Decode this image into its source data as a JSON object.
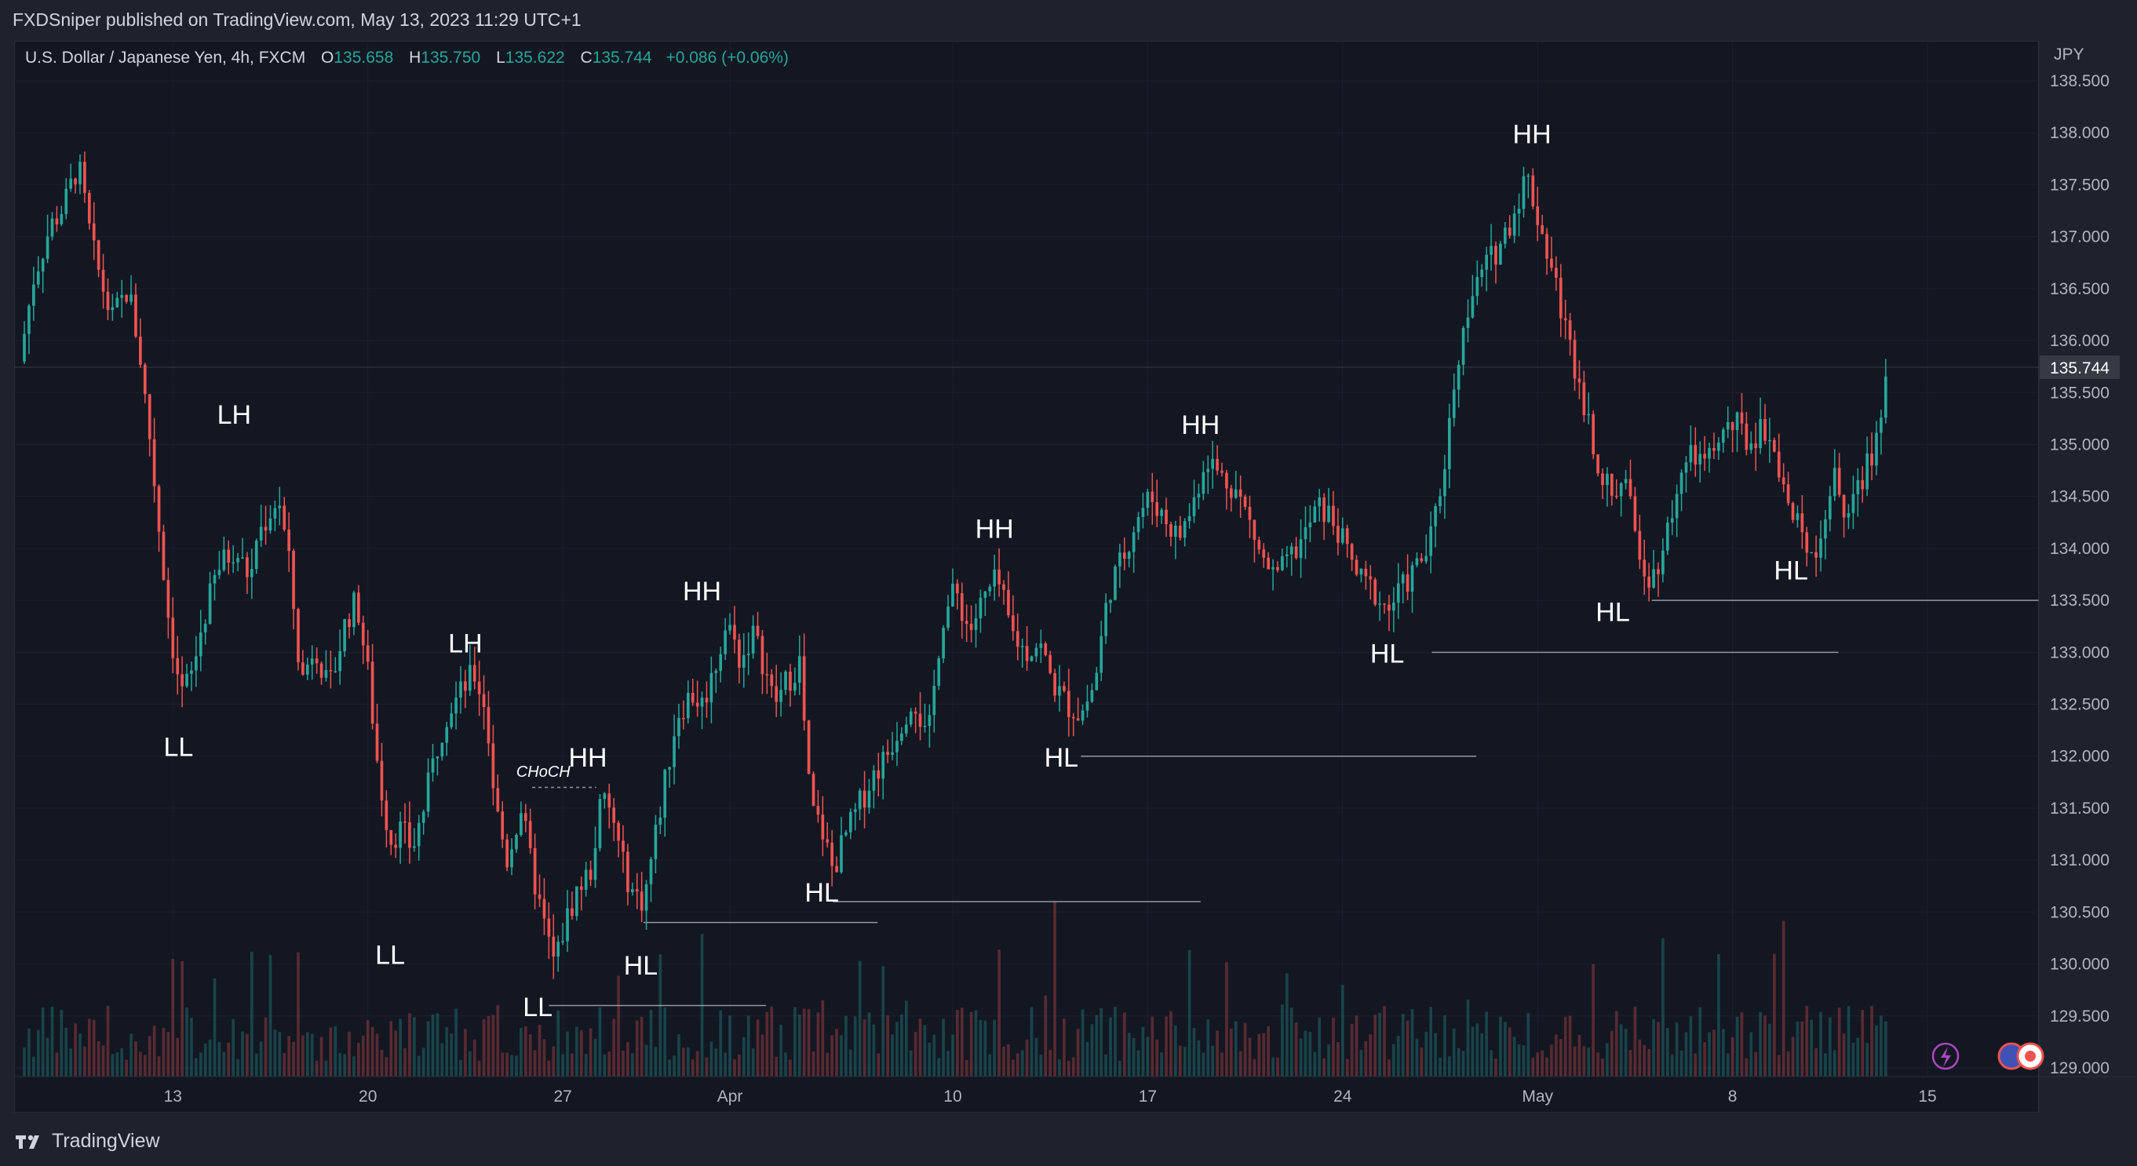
{
  "header": {
    "published_text": "FXDSniper published on TradingView.com, May 13, 2023 11:29 UTC+1"
  },
  "legend": {
    "symbol": "U.S. Dollar / Japanese Yen, 4h, FXCM",
    "open_label": "O",
    "open": "135.658",
    "high_label": "H",
    "high": "135.750",
    "low_label": "L",
    "low": "135.622",
    "close_label": "C",
    "close": "135.744",
    "change": "+0.086 (+0.06%)"
  },
  "axis": {
    "currency": "JPY"
  },
  "footer": {
    "brand": "TradingView"
  },
  "colors": {
    "up": "#26a69a",
    "down": "#ef5350",
    "background": "#131722",
    "label_text": "#ffffff",
    "level_line": "#9598a1",
    "price_tag": "#363a45"
  },
  "chart_data": {
    "type": "candlestick",
    "symbol": "USDJPY",
    "timeframe": "4h",
    "y_axis": {
      "ticks": [
        "138.500",
        "138.000",
        "137.500",
        "137.000",
        "136.500",
        "136.000",
        "135.500",
        "135.000",
        "134.500",
        "134.000",
        "133.500",
        "133.000",
        "132.500",
        "132.000",
        "131.500",
        "131.000",
        "130.500",
        "130.000",
        "129.500",
        "129.000"
      ],
      "range": [
        129.0,
        138.5
      ]
    },
    "x_axis": {
      "ticks": [
        {
          "label": "13",
          "t": 12
        },
        {
          "label": "20",
          "t": 19
        },
        {
          "label": "27",
          "t": 26
        },
        {
          "label": "Apr",
          "t": 32
        },
        {
          "label": "10",
          "t": 40
        },
        {
          "label": "17",
          "t": 47
        },
        {
          "label": "24",
          "t": 54
        },
        {
          "label": "May",
          "t": 61
        },
        {
          "label": "8",
          "t": 68
        },
        {
          "label": "15",
          "t": 75
        }
      ],
      "range": [
        6.3,
        79.0
      ]
    },
    "last_price": "135.744",
    "price_path": [
      [
        6.5,
        135.8
      ],
      [
        7.0,
        136.6
      ],
      [
        7.6,
        137.1
      ],
      [
        8.1,
        137.3
      ],
      [
        8.6,
        137.7
      ],
      [
        9.1,
        136.9
      ],
      [
        9.8,
        136.2
      ],
      [
        10.4,
        136.5
      ],
      [
        10.8,
        135.9
      ],
      [
        11.2,
        135.0
      ],
      [
        11.5,
        134.2
      ],
      [
        11.9,
        133.2
      ],
      [
        12.3,
        132.6
      ],
      [
        12.7,
        132.8
      ],
      [
        13.0,
        133.2
      ],
      [
        13.6,
        133.8
      ],
      [
        14.2,
        134.0
      ],
      [
        14.8,
        133.7
      ],
      [
        15.0,
        134.1
      ],
      [
        15.4,
        134.3
      ],
      [
        15.8,
        134.5
      ],
      [
        16.2,
        133.8
      ],
      [
        16.6,
        132.7
      ],
      [
        17.1,
        133.1
      ],
      [
        17.6,
        132.6
      ],
      [
        18.2,
        133.3
      ],
      [
        18.6,
        133.5
      ],
      [
        19.0,
        132.8
      ],
      [
        19.4,
        131.8
      ],
      [
        19.8,
        131.2
      ],
      [
        20.2,
        131.3
      ],
      [
        20.6,
        131.1
      ],
      [
        21.0,
        131.5
      ],
      [
        21.4,
        132.0
      ],
      [
        21.8,
        132.4
      ],
      [
        22.3,
        132.6
      ],
      [
        22.8,
        132.8
      ],
      [
        23.2,
        132.5
      ],
      [
        23.6,
        131.5
      ],
      [
        24.0,
        131.0
      ],
      [
        24.5,
        131.5
      ],
      [
        24.9,
        130.9
      ],
      [
        25.3,
        130.4
      ],
      [
        25.7,
        130.0
      ],
      [
        26.1,
        130.4
      ],
      [
        26.5,
        130.7
      ],
      [
        27.0,
        130.9
      ],
      [
        27.4,
        131.6
      ],
      [
        27.8,
        131.4
      ],
      [
        28.1,
        131.0
      ],
      [
        28.5,
        130.7
      ],
      [
        28.9,
        130.6
      ],
      [
        29.3,
        131.2
      ],
      [
        29.7,
        131.8
      ],
      [
        30.1,
        132.4
      ],
      [
        30.6,
        132.6
      ],
      [
        31.0,
        132.5
      ],
      [
        31.4,
        132.8
      ],
      [
        31.9,
        133.3
      ],
      [
        32.4,
        132.9
      ],
      [
        32.8,
        133.2
      ],
      [
        33.2,
        132.9
      ],
      [
        33.6,
        132.5
      ],
      [
        34.0,
        132.7
      ],
      [
        34.5,
        132.9
      ],
      [
        34.9,
        131.5
      ],
      [
        35.3,
        131.3
      ],
      [
        35.7,
        130.9
      ],
      [
        36.1,
        131.2
      ],
      [
        36.6,
        131.5
      ],
      [
        37.1,
        131.8
      ],
      [
        37.6,
        132.0
      ],
      [
        38.1,
        132.3
      ],
      [
        38.6,
        132.6
      ],
      [
        39.1,
        132.1
      ],
      [
        39.6,
        133.3
      ],
      [
        40.1,
        133.6
      ],
      [
        40.6,
        133.2
      ],
      [
        41.1,
        133.5
      ],
      [
        41.6,
        133.7
      ],
      [
        42.1,
        133.2
      ],
      [
        42.6,
        133.0
      ],
      [
        43.1,
        133.1
      ],
      [
        43.6,
        132.7
      ],
      [
        44.1,
        132.5
      ],
      [
        44.6,
        132.4
      ],
      [
        45.1,
        132.7
      ],
      [
        45.6,
        133.6
      ],
      [
        46.1,
        133.9
      ],
      [
        46.6,
        134.3
      ],
      [
        47.1,
        134.5
      ],
      [
        47.6,
        134.3
      ],
      [
        48.1,
        134.1
      ],
      [
        48.6,
        134.4
      ],
      [
        49.1,
        134.9
      ],
      [
        49.6,
        134.7
      ],
      [
        50.1,
        134.6
      ],
      [
        50.6,
        134.3
      ],
      [
        51.1,
        133.9
      ],
      [
        51.6,
        133.7
      ],
      [
        52.1,
        133.9
      ],
      [
        52.6,
        134.1
      ],
      [
        53.1,
        134.4
      ],
      [
        53.6,
        134.3
      ],
      [
        54.1,
        134.0
      ],
      [
        54.6,
        133.7
      ],
      [
        55.1,
        133.6
      ],
      [
        55.6,
        133.4
      ],
      [
        56.1,
        133.6
      ],
      [
        56.6,
        133.8
      ],
      [
        57.1,
        134.0
      ],
      [
        57.6,
        134.7
      ],
      [
        58.1,
        135.8
      ],
      [
        58.6,
        136.4
      ],
      [
        59.1,
        136.7
      ],
      [
        59.6,
        136.9
      ],
      [
        60.1,
        137.2
      ],
      [
        60.6,
        137.6
      ],
      [
        61.1,
        137.1
      ],
      [
        61.6,
        136.6
      ],
      [
        62.1,
        136.0
      ],
      [
        62.6,
        135.5
      ],
      [
        63.1,
        134.9
      ],
      [
        63.6,
        134.5
      ],
      [
        64.1,
        134.7
      ],
      [
        64.6,
        134.0
      ],
      [
        65.1,
        133.7
      ],
      [
        65.6,
        134.1
      ],
      [
        66.1,
        134.7
      ],
      [
        66.6,
        134.9
      ],
      [
        67.1,
        134.8
      ],
      [
        67.6,
        135.1
      ],
      [
        68.1,
        135.2
      ],
      [
        68.6,
        135.0
      ],
      [
        69.1,
        135.2
      ],
      [
        69.6,
        134.9
      ],
      [
        70.1,
        134.3
      ],
      [
        70.6,
        134.1
      ],
      [
        71.1,
        134.0
      ],
      [
        71.6,
        134.7
      ],
      [
        72.1,
        134.3
      ],
      [
        72.6,
        134.6
      ],
      [
        73.1,
        135.0
      ],
      [
        73.6,
        135.744
      ]
    ],
    "annotations": [
      {
        "text": "LH",
        "t": 14.2,
        "price": 135.2
      },
      {
        "text": "LL",
        "t": 12.2,
        "price": 132.0
      },
      {
        "text": "LH",
        "t": 22.5,
        "price": 133.0
      },
      {
        "text": "LL",
        "t": 19.8,
        "price": 130.0
      },
      {
        "text": "CHoCH",
        "t": 25.3,
        "price": 131.8
      },
      {
        "text": "HH",
        "t": 26.9,
        "price": 131.9
      },
      {
        "text": "LL",
        "t": 25.1,
        "price": 129.5
      },
      {
        "text": "HL",
        "t": 28.8,
        "price": 129.9
      },
      {
        "text": "HH",
        "t": 31.0,
        "price": 133.5
      },
      {
        "text": "HL",
        "t": 35.3,
        "price": 130.6
      },
      {
        "text": "HH",
        "t": 41.5,
        "price": 134.1
      },
      {
        "text": "HL",
        "t": 43.9,
        "price": 131.9
      },
      {
        "text": "HH",
        "t": 48.9,
        "price": 135.1
      },
      {
        "text": "HL",
        "t": 55.6,
        "price": 132.9
      },
      {
        "text": "HH",
        "t": 60.8,
        "price": 137.9
      },
      {
        "text": "HL",
        "t": 63.7,
        "price": 133.3
      },
      {
        "text": "HL",
        "t": 70.1,
        "price": 133.7
      }
    ],
    "levels": [
      {
        "price": 129.6,
        "t_start": 25.5,
        "t_end": 33.3
      },
      {
        "price": 130.4,
        "t_start": 28.9,
        "t_end": 37.3
      },
      {
        "price": 130.6,
        "t_start": 35.7,
        "t_end": 48.9
      },
      {
        "price": 132.0,
        "t_start": 44.6,
        "t_end": 58.8
      },
      {
        "price": 133.0,
        "t_start": 57.2,
        "t_end": 71.8
      },
      {
        "price": 133.5,
        "t_start": 65.1,
        "t_end": 79.0
      }
    ],
    "choch_line": {
      "price": 131.7,
      "t_start": 24.9,
      "t_end": 27.2
    },
    "grid": true
  }
}
